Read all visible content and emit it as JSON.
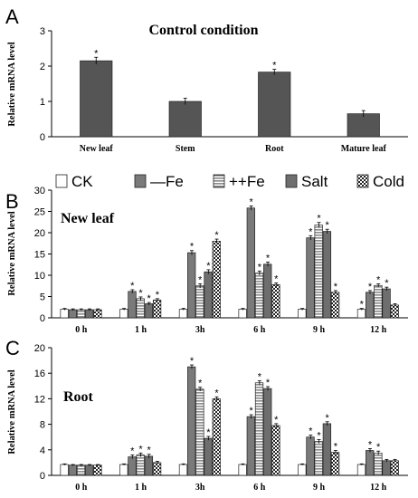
{
  "chart_data": [
    {
      "type": "bar",
      "panel_label": "A",
      "title": "Control condition",
      "ylabel": "Relative mRNA level",
      "ylim": [
        0,
        3
      ],
      "yticks": [
        "0",
        "1",
        "2",
        "3"
      ],
      "categories": [
        "New leaf",
        "Stem",
        "Root",
        "Mature leaf"
      ],
      "series": [
        {
          "values": [
            2.15,
            1.0,
            1.83,
            0.65
          ],
          "errors": [
            0.1,
            0.09,
            0.08,
            0.09
          ],
          "stars": [
            true,
            false,
            true,
            false
          ]
        }
      ],
      "bar_color": "#555555"
    },
    {
      "type": "bar",
      "panel_label": "B",
      "title": "New leaf",
      "ylabel": "Relative mRNA level",
      "ylim": [
        0,
        30
      ],
      "yticks": [
        "0",
        "5",
        "10",
        "15",
        "20",
        "25",
        "30"
      ],
      "categories": [
        "0 h",
        "1 h",
        "3h",
        "6 h",
        "9 h",
        "12 h"
      ],
      "legend": [
        "CK",
        "—Fe",
        "++Fe",
        "Salt",
        "Cold"
      ],
      "series": [
        {
          "name": "CK",
          "values": [
            2.0,
            2.0,
            2.0,
            2.0,
            2.0,
            2.0
          ],
          "errors": [
            0.2,
            0.2,
            0.2,
            0.2,
            0.2,
            0.2
          ],
          "stars": [
            false,
            false,
            false,
            false,
            false,
            true
          ]
        },
        {
          "name": "—Fe",
          "values": [
            1.9,
            6.2,
            15.3,
            25.8,
            18.8,
            6.0
          ],
          "errors": [
            0.2,
            0.4,
            0.5,
            0.5,
            0.5,
            0.4
          ],
          "stars": [
            false,
            true,
            true,
            true,
            true,
            true
          ]
        },
        {
          "name": "++Fe",
          "values": [
            1.9,
            4.5,
            7.5,
            10.5,
            21.8,
            7.6
          ],
          "errors": [
            0.2,
            0.4,
            0.5,
            0.5,
            0.6,
            0.4
          ],
          "stars": [
            false,
            true,
            true,
            true,
            true,
            true
          ]
        },
        {
          "name": "Salt",
          "values": [
            1.9,
            3.3,
            10.8,
            12.6,
            20.3,
            6.8
          ],
          "errors": [
            0.2,
            0.3,
            0.5,
            0.5,
            0.5,
            0.4
          ],
          "stars": [
            false,
            true,
            true,
            true,
            true,
            true
          ]
        },
        {
          "name": "Cold",
          "values": [
            1.9,
            4.2,
            18.0,
            7.8,
            6.0,
            3.0
          ],
          "errors": [
            0.2,
            0.3,
            0.5,
            0.4,
            0.4,
            0.3
          ],
          "stars": [
            false,
            true,
            true,
            true,
            true,
            false
          ]
        }
      ]
    },
    {
      "type": "bar",
      "panel_label": "C",
      "title": "Root",
      "ylabel": "Relative mRNA level",
      "ylim": [
        0,
        20
      ],
      "yticks": [
        "0",
        "4",
        "8",
        "12",
        "16",
        "20"
      ],
      "categories": [
        "0 h",
        "1 h",
        "3h",
        "6 h",
        "9 h",
        "12 h"
      ],
      "legend": [
        "CK",
        "—Fe",
        "++Fe",
        "Salt",
        "Cold"
      ],
      "series": [
        {
          "name": "CK",
          "values": [
            1.7,
            1.7,
            1.7,
            1.7,
            1.7,
            1.7
          ],
          "errors": [
            0.1,
            0.1,
            0.1,
            0.1,
            0.1,
            0.1
          ],
          "stars": [
            false,
            false,
            false,
            false,
            false,
            false
          ]
        },
        {
          "name": "—Fe",
          "values": [
            1.6,
            2.9,
            17.0,
            9.2,
            6.0,
            3.9
          ],
          "errors": [
            0.1,
            0.3,
            0.3,
            0.3,
            0.3,
            0.3
          ],
          "stars": [
            false,
            true,
            true,
            true,
            true,
            true
          ]
        },
        {
          "name": "++Fe",
          "values": [
            1.6,
            3.2,
            13.5,
            14.5,
            5.3,
            3.5
          ],
          "errors": [
            0.1,
            0.3,
            0.3,
            0.3,
            0.3,
            0.3
          ],
          "stars": [
            false,
            true,
            true,
            true,
            true,
            true
          ]
        },
        {
          "name": "Salt",
          "values": [
            1.6,
            3.0,
            5.8,
            13.6,
            8.1,
            2.3
          ],
          "errors": [
            0.1,
            0.3,
            0.3,
            0.3,
            0.3,
            0.2
          ],
          "stars": [
            false,
            true,
            true,
            true,
            true,
            false
          ]
        },
        {
          "name": "Cold",
          "values": [
            1.6,
            2.0,
            12.0,
            7.8,
            3.6,
            2.3
          ],
          "errors": [
            0.1,
            0.2,
            0.3,
            0.3,
            0.3,
            0.2
          ],
          "stars": [
            false,
            false,
            true,
            true,
            true,
            false
          ]
        }
      ]
    }
  ]
}
